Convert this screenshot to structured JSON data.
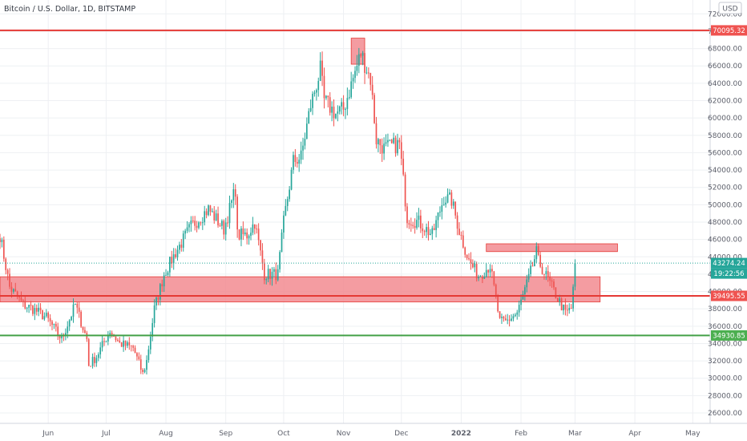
{
  "header": {
    "title": "Bitcoin / U.S. Dollar, 1D, BITSTAMP"
  },
  "currency_label": "USD",
  "colors": {
    "up": "#26a69a",
    "down": "#ef5350",
    "resistance_line": "#e53935",
    "support_line": "#43a047",
    "zone_fill": "#f28b91",
    "zone_stroke": "#e53935",
    "last_price_bg": "#26a69a",
    "countdown_bg": "#26a69a",
    "level_label_red_bg": "#ef5350",
    "level_label_green_bg": "#4caf50"
  },
  "labels": {
    "last_price": "43274.24",
    "countdown": "19:22:56",
    "level_top": "70095.32",
    "level_mid": "39495.55",
    "level_support": "34930.85"
  },
  "chart_data": {
    "type": "candlestick",
    "title": "Bitcoin / U.S. Dollar, 1D, BITSTAMP",
    "y_axis": {
      "unit": "USD",
      "range": [
        24800,
        73600
      ],
      "ticks": [
        "26000.00",
        "28000.00",
        "30000.00",
        "32000.00",
        "34000.00",
        "36000.00",
        "38000.00",
        "40000.00",
        "42000.00",
        "44000.00",
        "46000.00",
        "48000.00",
        "50000.00",
        "52000.00",
        "54000.00",
        "56000.00",
        "58000.00",
        "60000.00",
        "62000.00",
        "64000.00",
        "66000.00",
        "68000.00",
        "70000.00",
        "72000.00"
      ]
    },
    "x_axis": {
      "range": [
        "2021-05-07",
        "2022-05-10"
      ],
      "ticks": [
        {
          "date": "2021-06-01",
          "label": "Jun"
        },
        {
          "date": "2021-07-01",
          "label": "Jul"
        },
        {
          "date": "2021-08-01",
          "label": "Aug"
        },
        {
          "date": "2021-09-01",
          "label": "Sep"
        },
        {
          "date": "2021-10-01",
          "label": "Oct"
        },
        {
          "date": "2021-11-01",
          "label": "Nov"
        },
        {
          "date": "2021-12-01",
          "label": "Dec"
        },
        {
          "date": "2022-01-01",
          "label": "2022"
        },
        {
          "date": "2022-02-01",
          "label": "Feb"
        },
        {
          "date": "2022-03-01",
          "label": "Mar"
        },
        {
          "date": "2022-04-01",
          "label": "Apr"
        },
        {
          "date": "2022-05-01",
          "label": "May"
        }
      ]
    },
    "price_path": [
      [
        "2021-05-07",
        46500
      ],
      [
        "2021-05-12",
        40500
      ],
      [
        "2021-05-19",
        38500
      ],
      [
        "2021-05-24",
        38000
      ],
      [
        "2021-05-31",
        37000
      ],
      [
        "2021-06-08",
        34500
      ],
      [
        "2021-06-15",
        38500
      ],
      [
        "2021-06-21",
        34500
      ],
      [
        "2021-06-22",
        31500
      ],
      [
        "2021-06-26",
        32500
      ],
      [
        "2021-07-03",
        35500
      ],
      [
        "2021-07-08",
        34000
      ],
      [
        "2021-07-15",
        33500
      ],
      [
        "2021-07-20",
        30500
      ],
      [
        "2021-07-22",
        32000
      ],
      [
        "2021-07-26",
        38000
      ],
      [
        "2021-07-31",
        42000
      ],
      [
        "2021-08-06",
        44500
      ],
      [
        "2021-08-14",
        47500
      ],
      [
        "2021-08-23",
        49500
      ],
      [
        "2021-08-31",
        47200
      ],
      [
        "2021-09-06",
        51800
      ],
      [
        "2021-09-07",
        46500
      ],
      [
        "2021-09-12",
        46500
      ],
      [
        "2021-09-16",
        48000
      ],
      [
        "2021-09-21",
        42000
      ],
      [
        "2021-09-28",
        42000
      ],
      [
        "2021-10-01",
        48000
      ],
      [
        "2021-10-06",
        55000
      ],
      [
        "2021-10-10",
        55500
      ],
      [
        "2021-10-15",
        61500
      ],
      [
        "2021-10-20",
        65500
      ],
      [
        "2021-10-22",
        62000
      ],
      [
        "2021-10-28",
        60500
      ],
      [
        "2021-11-01",
        61000
      ],
      [
        "2021-11-08",
        66000
      ],
      [
        "2021-11-10",
        67500
      ],
      [
        "2021-11-15",
        64500
      ],
      [
        "2021-11-18",
        57500
      ],
      [
        "2021-11-22",
        56500
      ],
      [
        "2021-11-30",
        57000
      ],
      [
        "2021-12-04",
        48500
      ],
      [
        "2021-12-10",
        48000
      ],
      [
        "2021-12-17",
        46500
      ],
      [
        "2021-12-23",
        50800
      ],
      [
        "2021-12-27",
        50500
      ],
      [
        "2021-12-31",
        47000
      ],
      [
        "2022-01-05",
        43500
      ],
      [
        "2022-01-10",
        41800
      ],
      [
        "2022-01-16",
        43000
      ],
      [
        "2022-01-21",
        36500
      ],
      [
        "2022-01-24",
        36500
      ],
      [
        "2022-01-30",
        37500
      ],
      [
        "2022-02-05",
        41500
      ],
      [
        "2022-02-09",
        44500
      ],
      [
        "2022-02-10",
        43500
      ],
      [
        "2022-02-17",
        40500
      ],
      [
        "2022-02-24",
        37500
      ],
      [
        "2022-02-27",
        38000
      ],
      [
        "2022-03-01",
        43274.24
      ]
    ],
    "horizontal_levels": [
      {
        "value": 70095.32,
        "label": "70095.32",
        "color": "#e53935"
      },
      {
        "value": 39495.55,
        "label": "39495.55",
        "color": "#e53935"
      },
      {
        "value": 34930.85,
        "label": "34930.85",
        "color": "#43a047"
      }
    ],
    "zones": [
      {
        "from": "2021-05-07",
        "to": "2022-03-14",
        "low": 38800,
        "high": 41700
      },
      {
        "from": "2022-01-14",
        "to": "2022-03-23",
        "low": 44600,
        "high": 45500
      },
      {
        "from": "2021-11-05",
        "to": "2021-11-12",
        "low": 66200,
        "high": 69200
      }
    ],
    "last_price": 43274.24,
    "last_price_label": "43274.24",
    "countdown": "19:22:56"
  }
}
